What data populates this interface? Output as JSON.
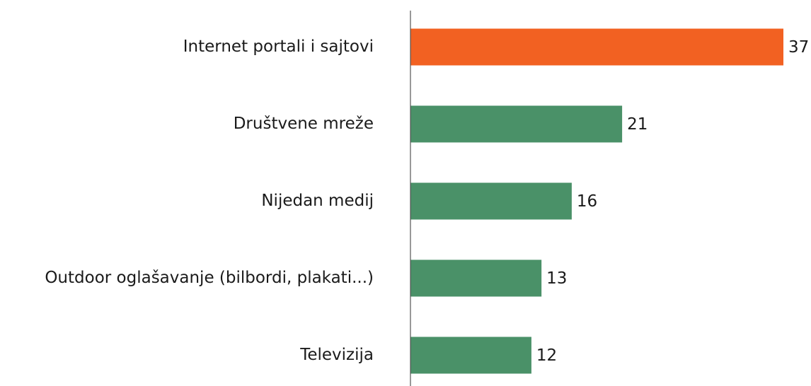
{
  "chart_data": {
    "type": "bar",
    "orientation": "horizontal",
    "categories": [
      "Internet portali i sajtovi",
      "Društvene mreže",
      "Nijedan medij",
      "Outdoor oglašavanje (bilbordi, plakati...)",
      "Televizija"
    ],
    "values": [
      37,
      21,
      16,
      13,
      12
    ],
    "colors": [
      "#f26122",
      "#4a9168",
      "#4a9168",
      "#4a9168",
      "#4a9168"
    ]
  }
}
